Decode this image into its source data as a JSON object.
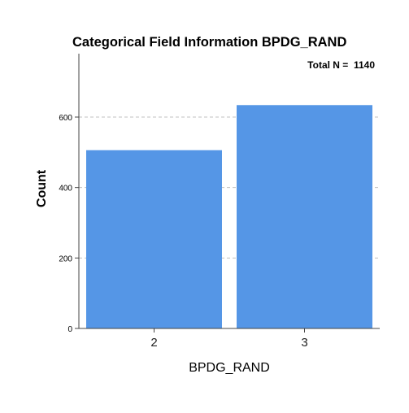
{
  "chart_data": {
    "type": "bar",
    "title": "Categorical Field Information BPDG_RAND",
    "annotation": "Total N =  1140",
    "xlabel": "BPDG_RAND",
    "ylabel": "Count",
    "categories": [
      "2",
      "3"
    ],
    "values": [
      506,
      634
    ],
    "ylim": [
      0,
      780
    ],
    "yticks": [
      0,
      200,
      400,
      600
    ],
    "ytick_labels": [
      "0",
      "200",
      "400",
      "600"
    ],
    "grid": true,
    "bar_color": "#5596e6",
    "grid_color": "#c0c0c0",
    "axis_color": "#444444"
  }
}
